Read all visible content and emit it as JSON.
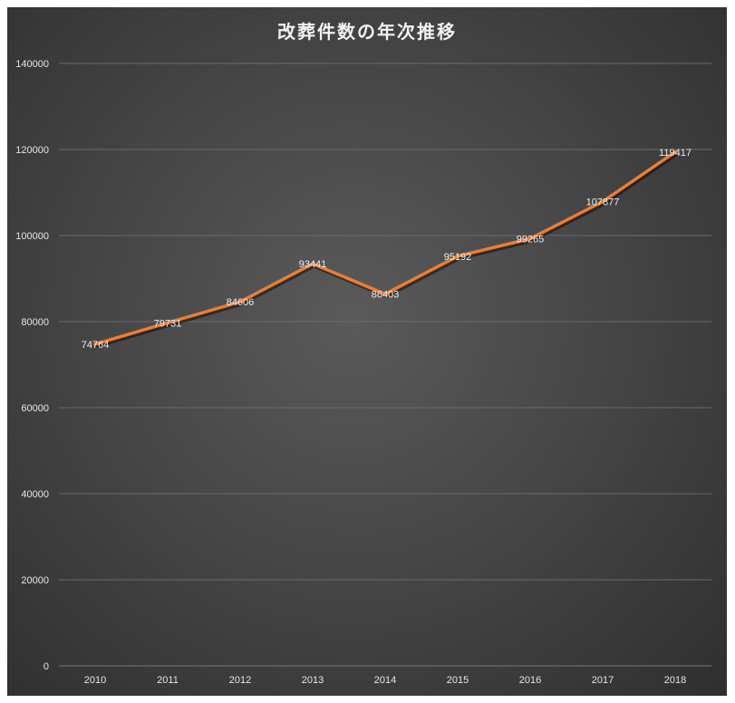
{
  "chart_data": {
    "type": "line",
    "title": "改葬件数の年次推移",
    "xlabel": "",
    "ylabel": "",
    "categories": [
      "2010",
      "2011",
      "2012",
      "2013",
      "2014",
      "2015",
      "2016",
      "2017",
      "2018"
    ],
    "series": [
      {
        "values": [
          74764,
          79731,
          84606,
          93441,
          86403,
          95192,
          99265,
          107877,
          119417
        ],
        "color": "#ed7d31"
      }
    ],
    "ylim": [
      0,
      140000
    ],
    "yticks": [
      0,
      20000,
      40000,
      60000,
      80000,
      100000,
      120000,
      140000
    ],
    "grid": true,
    "legend": "none",
    "data_labels": true,
    "background": "dark gradient"
  }
}
